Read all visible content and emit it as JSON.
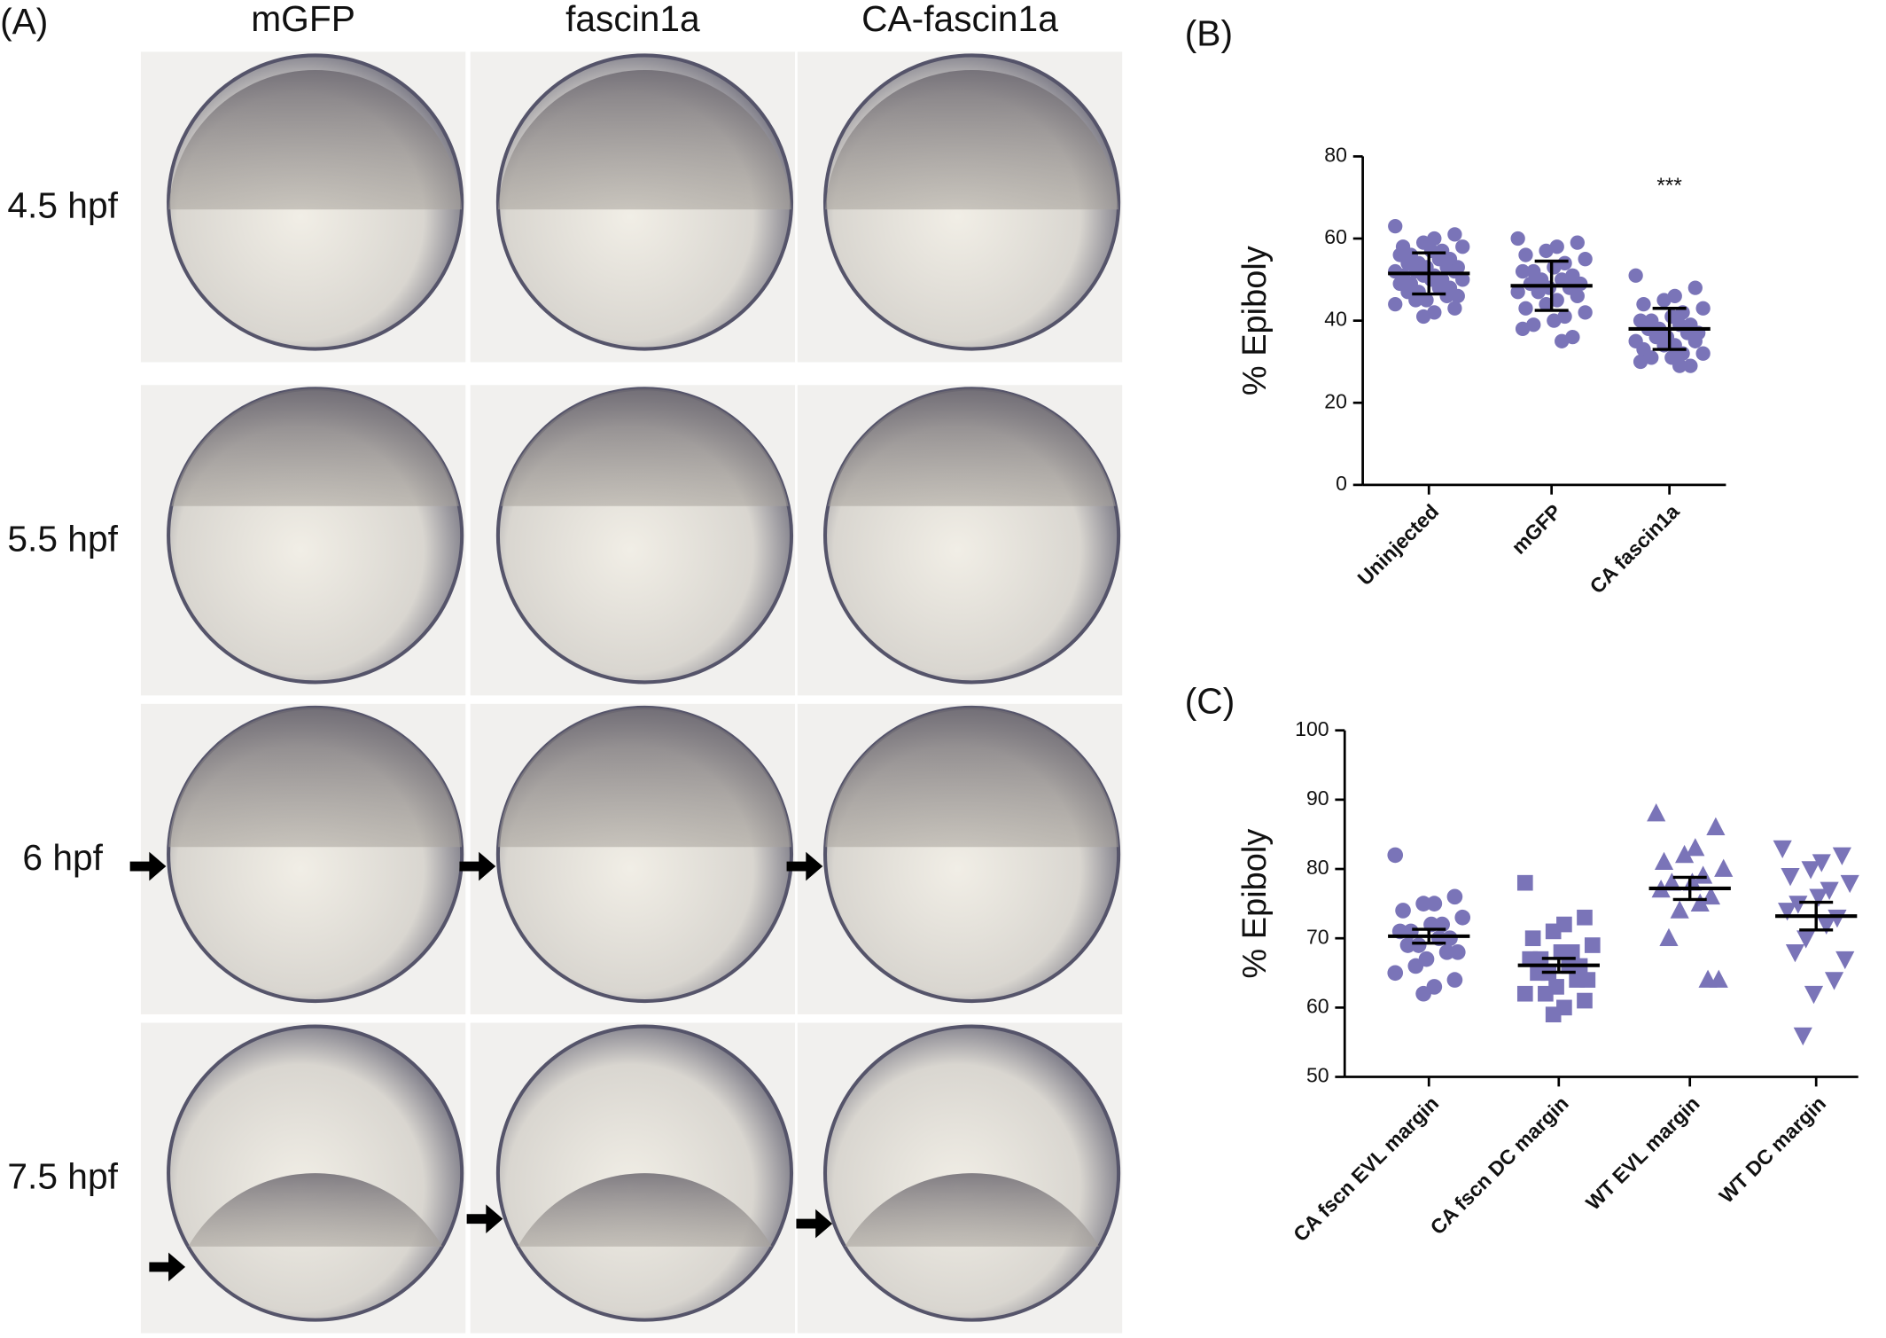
{
  "panel_a": {
    "label": "(A)",
    "columns": [
      "mGFP",
      "fascin1a",
      "CA-fascin1a"
    ],
    "rows": [
      "4.5 hpf",
      "5.5 hpf",
      "6 hpf",
      "7.5 hpf"
    ]
  },
  "chart_data": [
    {
      "type": "strip",
      "panel": "(B)",
      "ylabel": "% Epiboly",
      "color": "#7a74b8",
      "categories": [
        "Uninjected",
        "mGFP",
        "CA fascin1a"
      ],
      "ylim": [
        0,
        80
      ],
      "yticks": [
        0,
        20,
        40,
        60,
        80
      ],
      "groups": [
        {
          "marker": "circle",
          "mean": 51.5,
          "error": 5,
          "values": [
            63,
            61,
            60,
            59,
            58,
            58,
            57,
            57,
            56,
            56,
            55,
            55,
            54,
            54,
            53,
            53,
            53,
            52,
            52,
            52,
            51,
            51,
            51,
            50,
            50,
            50,
            49,
            49,
            48,
            48,
            47,
            47,
            46,
            46,
            45,
            45,
            44,
            43,
            42,
            41
          ]
        },
        {
          "marker": "circle",
          "mean": 48.5,
          "error": 6,
          "values": [
            60,
            59,
            58,
            57,
            56,
            55,
            54,
            53,
            52,
            52,
            51,
            50,
            50,
            49,
            49,
            48,
            48,
            47,
            47,
            46,
            45,
            44,
            43,
            42,
            41,
            40,
            39,
            38,
            36,
            35
          ]
        },
        {
          "marker": "circle",
          "mean": 38,
          "error": 5,
          "annotation": "***",
          "values": [
            51,
            48,
            46,
            45,
            44,
            43,
            42,
            41,
            40,
            40,
            39,
            39,
            38,
            38,
            37,
            37,
            36,
            36,
            35,
            35,
            34,
            34,
            33,
            32,
            32,
            31,
            31,
            30,
            29,
            29
          ]
        }
      ]
    },
    {
      "type": "strip",
      "panel": "(C)",
      "ylabel": "% Epiboly",
      "color": "#7a74b8",
      "categories": [
        "CA fscn EVL margin",
        "CA fscn DC margin",
        "WT EVL margin",
        "WT DC margin"
      ],
      "ylim": [
        50,
        100
      ],
      "yticks": [
        50,
        60,
        70,
        80,
        90,
        100
      ],
      "groups": [
        {
          "marker": "circle",
          "mean": 70.3,
          "error": 1.0,
          "values": [
            82,
            76,
            75,
            75,
            74,
            73,
            72,
            72,
            71,
            71,
            70,
            70,
            69,
            69,
            68,
            68,
            67,
            66,
            65,
            64,
            63,
            62
          ]
        },
        {
          "marker": "square",
          "mean": 66.1,
          "error": 1.0,
          "values": [
            78,
            73,
            72,
            71,
            70,
            69,
            68,
            68,
            67,
            67,
            66,
            66,
            65,
            65,
            64,
            64,
            63,
            62,
            62,
            61,
            60,
            59
          ]
        },
        {
          "marker": "triangle-up",
          "mean": 77.2,
          "error": 1.6,
          "values": [
            88,
            86,
            83,
            82,
            81,
            80,
            79,
            78,
            78,
            77,
            76,
            75,
            74,
            70,
            64,
            64
          ]
        },
        {
          "marker": "triangle-down",
          "mean": 73.2,
          "error": 2.0,
          "values": [
            83,
            82,
            81,
            80,
            79,
            78,
            77,
            76,
            75,
            74,
            73,
            72,
            70,
            68,
            67,
            64,
            62,
            56
          ]
        }
      ]
    }
  ]
}
